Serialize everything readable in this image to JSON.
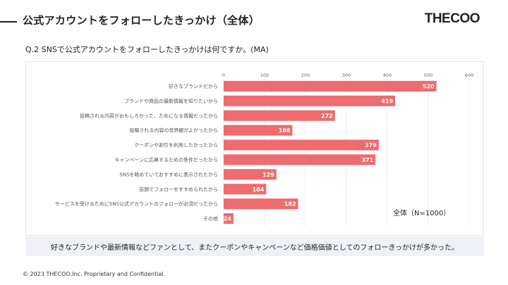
{
  "header": {
    "title": "公式アカウントをフォローしたきっかけ（全体）",
    "logo": "THECOO"
  },
  "question": "Q.2 SNSで公式アカウントをフォローしたきっかけは何ですか。(MA)",
  "total_label": "全体（N=1000）",
  "summary": "好きなブランドや最新情報などファンとして、またクーポンやキャンペーンなど価格価値としてのフォローきっかけが多かった。",
  "footer": "© 2023 THECOO,Inc. Proprietary and Confidential.",
  "colors": {
    "bar": "#ee6b6e",
    "grid": "#e8e8e8"
  },
  "chart_data": {
    "type": "bar",
    "orientation": "horizontal",
    "title": "",
    "xlabel": "",
    "ylabel": "",
    "xlim": [
      0,
      600
    ],
    "ticks": [
      0,
      100,
      200,
      300,
      400,
      500,
      600
    ],
    "grid": true,
    "categories": [
      "好きなブランドだから",
      "ブランドや商品の最新情報を知りたいから",
      "投稿される内容がおもしろかった、ためになる情報だったから",
      "投稿される内容の世界観がよかったから",
      "クーポンや割引を利用したかったから",
      "キャンペーンに応募するための条件だったから",
      "SNSを眺めていておすすめに表示されたから",
      "店頭でフォローをすすめられたから",
      "サービスを受けるためにSNS公式アカウントのフォローが必須だったから",
      "その他"
    ],
    "values": [
      520,
      419,
      272,
      168,
      379,
      371,
      129,
      104,
      182,
      24
    ]
  }
}
